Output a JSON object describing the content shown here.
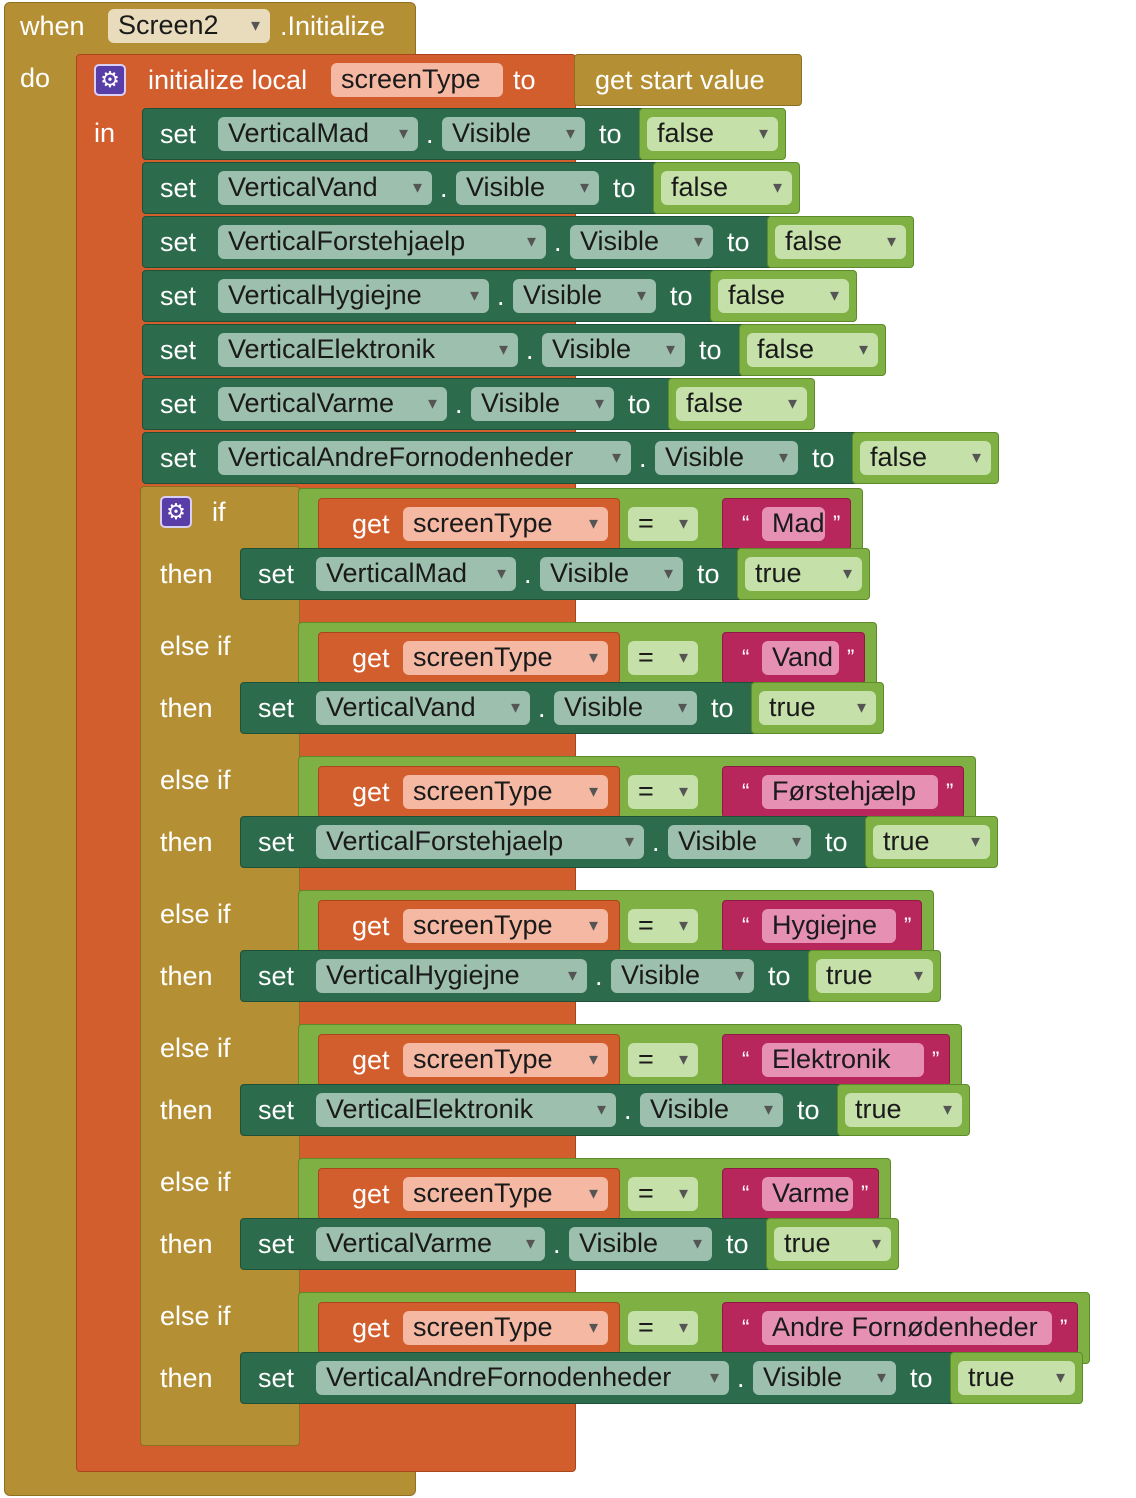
{
  "event": {
    "when_label": "when",
    "component": "Screen2",
    "event_name": ".Initialize",
    "do_label": "do"
  },
  "local_var": {
    "label": "initialize local",
    "name": "screenType",
    "to_label": "to",
    "value_block": "get start value",
    "in_label": "in"
  },
  "set_label": "set",
  "to_label": "to",
  "dot": ".",
  "property": "Visible",
  "sets": [
    {
      "component": "VerticalMad",
      "value": "false"
    },
    {
      "component": "VerticalVand",
      "value": "false"
    },
    {
      "component": "VerticalForstehjaelp",
      "value": "false"
    },
    {
      "component": "VerticalHygiejne",
      "value": "false"
    },
    {
      "component": "VerticalElektronik",
      "value": "false"
    },
    {
      "component": "VerticalVarme",
      "value": "false"
    },
    {
      "component": "VerticalAndreFornodenheder",
      "value": "false"
    }
  ],
  "if_block": {
    "if_label": "if",
    "else_if_label": "else if",
    "then_label": "then",
    "get_label": "get",
    "var_name": "screenType",
    "operator": "=",
    "open_quote": "“",
    "close_quote": "”",
    "branches": [
      {
        "text": "Mad",
        "component": "VerticalMad",
        "value": "true"
      },
      {
        "text": "Vand",
        "component": "VerticalVand",
        "value": "true"
      },
      {
        "text": "Førstehjælp",
        "component": "VerticalForstehjaelp",
        "value": "true"
      },
      {
        "text": "Hygiejne",
        "component": "VerticalHygiejne",
        "value": "true"
      },
      {
        "text": "Elektronik",
        "component": "VerticalElektronik",
        "value": "true"
      },
      {
        "text": "Varme",
        "component": "VerticalVarme",
        "value": "true"
      },
      {
        "text": "Andre Fornødenheder",
        "component": "VerticalAndreFornodenheder",
        "value": "true"
      }
    ]
  }
}
